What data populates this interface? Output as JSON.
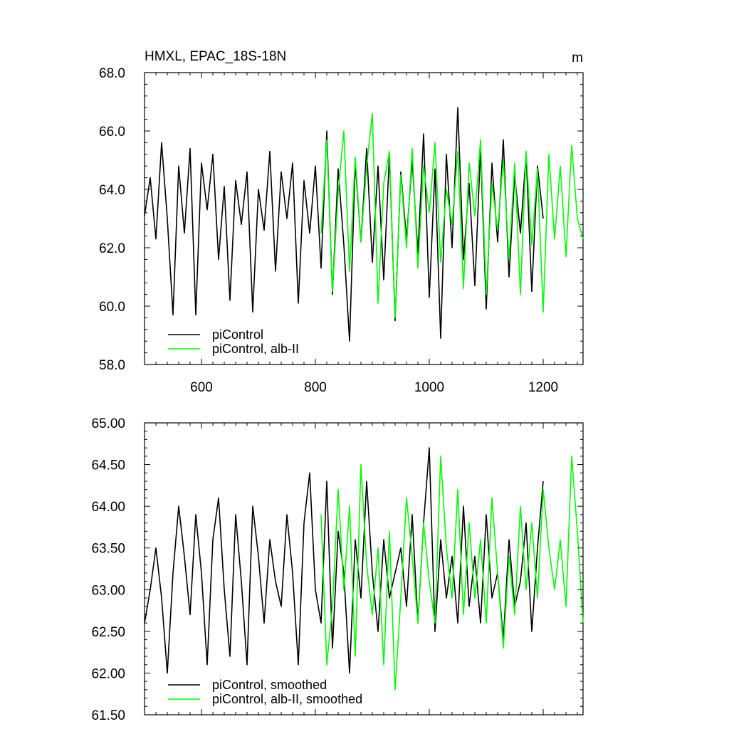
{
  "chart_data": [
    {
      "type": "line",
      "title": "HMXL, EPAC_18S-18N",
      "units": "m",
      "xlabel": "",
      "ylabel": "",
      "xlim": [
        500,
        1270
      ],
      "ylim": [
        58,
        68
      ],
      "x_ticks": [
        600,
        800,
        1000,
        1200
      ],
      "x_tick_labels": [
        "600",
        "800",
        "1000",
        "1200"
      ],
      "y_ticks": [
        58,
        60,
        62,
        64,
        66,
        68
      ],
      "y_tick_labels": [
        "58.0",
        "60.0",
        "62.0",
        "64.0",
        "66.0",
        "68.0"
      ],
      "grid": false,
      "legend": "bottom-left",
      "series": [
        {
          "name": "piControl",
          "color": "#000000",
          "x": [
            500,
            510,
            520,
            530,
            540,
            550,
            560,
            570,
            580,
            590,
            600,
            610,
            620,
            630,
            640,
            650,
            660,
            670,
            680,
            690,
            700,
            710,
            720,
            730,
            740,
            750,
            760,
            770,
            780,
            790,
            800,
            810,
            820,
            830,
            840,
            850,
            860,
            870,
            880,
            890,
            900,
            910,
            920,
            930,
            940,
            950,
            960,
            970,
            980,
            990,
            1000,
            1010,
            1020,
            1030,
            1040,
            1050,
            1060,
            1070,
            1080,
            1090,
            1100,
            1110,
            1120,
            1130,
            1140,
            1150,
            1160,
            1170,
            1180,
            1190,
            1200
          ],
          "values": [
            63.1,
            64.4,
            62.3,
            65.6,
            63.0,
            59.7,
            64.8,
            62.5,
            65.4,
            59.7,
            64.9,
            63.3,
            65.2,
            61.6,
            64.1,
            60.2,
            64.3,
            62.8,
            64.6,
            59.8,
            64.0,
            62.6,
            65.3,
            61.2,
            64.6,
            63.0,
            64.9,
            60.1,
            64.3,
            62.5,
            64.8,
            61.3,
            66.0,
            60.4,
            64.7,
            62.1,
            58.8,
            64.9,
            62.2,
            65.4,
            61.5,
            64.8,
            60.9,
            65.2,
            59.5,
            64.6,
            62.3,
            65.0,
            61.8,
            65.9,
            60.3,
            64.7,
            58.9,
            65.2,
            62.0,
            66.8,
            61.6,
            64.2,
            60.7,
            65.4,
            59.9,
            64.9,
            62.2,
            65.7,
            61.0,
            64.5,
            62.5,
            65.2,
            60.5,
            64.8,
            63.0
          ]
        },
        {
          "name": "piControl, alb-II",
          "color": "#00ff00",
          "x": [
            810,
            820,
            830,
            840,
            850,
            860,
            870,
            880,
            890,
            900,
            910,
            920,
            930,
            940,
            950,
            960,
            970,
            980,
            990,
            1000,
            1010,
            1020,
            1030,
            1040,
            1050,
            1060,
            1070,
            1080,
            1090,
            1100,
            1110,
            1120,
            1130,
            1140,
            1150,
            1160,
            1170,
            1180,
            1190,
            1200,
            1210,
            1220,
            1230,
            1240,
            1250,
            1260,
            1270
          ],
          "values": [
            62.5,
            65.7,
            60.5,
            63.9,
            66.0,
            61.2,
            65.1,
            62.2,
            64.8,
            66.6,
            60.1,
            64.2,
            65.3,
            59.6,
            64.5,
            62.0,
            65.4,
            61.3,
            64.8,
            63.2,
            65.6,
            61.5,
            64.0,
            62.8,
            65.3,
            60.6,
            64.9,
            63.1,
            65.7,
            60.4,
            64.2,
            62.6,
            65.0,
            61.6,
            64.9,
            60.4,
            65.3,
            62.1,
            64.7,
            59.8,
            65.2,
            62.3,
            64.8,
            61.7,
            65.5,
            63.0,
            62.3
          ]
        }
      ]
    },
    {
      "type": "line",
      "title": "",
      "xlabel": "",
      "ylabel": "",
      "xlim": [
        500,
        1270
      ],
      "ylim": [
        61.5,
        65.0
      ],
      "x_ticks": [
        600,
        800,
        1000,
        1200
      ],
      "y_ticks": [
        61.5,
        62.0,
        62.5,
        63.0,
        63.5,
        64.0,
        64.5,
        65.0
      ],
      "y_tick_labels": [
        "61.50",
        "62.00",
        "62.50",
        "63.00",
        "63.50",
        "64.00",
        "64.50",
        "65.00"
      ],
      "grid": false,
      "legend": "bottom-left",
      "series": [
        {
          "name": "piControl, smoothed",
          "color": "#000000",
          "x": [
            500,
            510,
            520,
            530,
            540,
            550,
            560,
            570,
            580,
            590,
            600,
            610,
            620,
            630,
            640,
            650,
            660,
            670,
            680,
            690,
            700,
            710,
            720,
            730,
            740,
            750,
            760,
            770,
            780,
            790,
            800,
            810,
            820,
            830,
            840,
            850,
            860,
            870,
            880,
            890,
            900,
            910,
            920,
            930,
            940,
            950,
            960,
            970,
            980,
            990,
            1000,
            1010,
            1020,
            1030,
            1040,
            1050,
            1060,
            1070,
            1080,
            1090,
            1100,
            1110,
            1120,
            1130,
            1140,
            1150,
            1160,
            1170,
            1180,
            1190,
            1200
          ],
          "values": [
            62.6,
            63.0,
            63.5,
            62.9,
            62.0,
            63.2,
            64.0,
            63.4,
            62.7,
            63.9,
            63.2,
            62.1,
            63.6,
            64.1,
            63.0,
            62.2,
            63.9,
            63.1,
            62.1,
            64.0,
            63.4,
            62.6,
            63.6,
            63.1,
            62.8,
            63.9,
            63.2,
            62.1,
            63.8,
            64.4,
            63.0,
            62.6,
            64.3,
            62.3,
            63.7,
            63.2,
            62.0,
            63.6,
            62.9,
            64.3,
            63.2,
            62.5,
            63.6,
            62.9,
            63.2,
            63.5,
            62.8,
            63.9,
            62.6,
            63.8,
            64.7,
            62.5,
            63.6,
            62.9,
            63.4,
            62.6,
            64.0,
            62.8,
            63.4,
            62.6,
            63.9,
            62.9,
            63.2,
            62.4,
            63.6,
            62.8,
            63.1,
            63.8,
            62.5,
            63.5,
            64.3
          ]
        },
        {
          "name": "piControl, alb-II, smoothed",
          "color": "#00ff00",
          "x": [
            810,
            820,
            830,
            840,
            850,
            860,
            870,
            880,
            890,
            900,
            910,
            920,
            930,
            940,
            950,
            960,
            970,
            980,
            990,
            1000,
            1010,
            1020,
            1030,
            1040,
            1050,
            1060,
            1070,
            1080,
            1090,
            1100,
            1110,
            1120,
            1130,
            1140,
            1150,
            1160,
            1170,
            1180,
            1190,
            1200,
            1210,
            1220,
            1230,
            1240,
            1250,
            1260,
            1270
          ],
          "values": [
            63.9,
            62.1,
            62.8,
            64.2,
            63.0,
            64.0,
            62.2,
            64.5,
            63.3,
            62.7,
            63.5,
            62.1,
            63.7,
            61.8,
            62.9,
            64.1,
            63.4,
            62.6,
            63.8,
            63.1,
            62.6,
            64.6,
            63.5,
            62.9,
            64.2,
            62.7,
            63.8,
            62.9,
            63.6,
            62.6,
            64.1,
            63.2,
            62.3,
            63.4,
            62.7,
            64.0,
            63.0,
            63.8,
            62.9,
            64.2,
            63.5,
            63.0,
            63.6,
            62.8,
            64.6,
            63.7,
            62.6
          ]
        }
      ]
    }
  ]
}
